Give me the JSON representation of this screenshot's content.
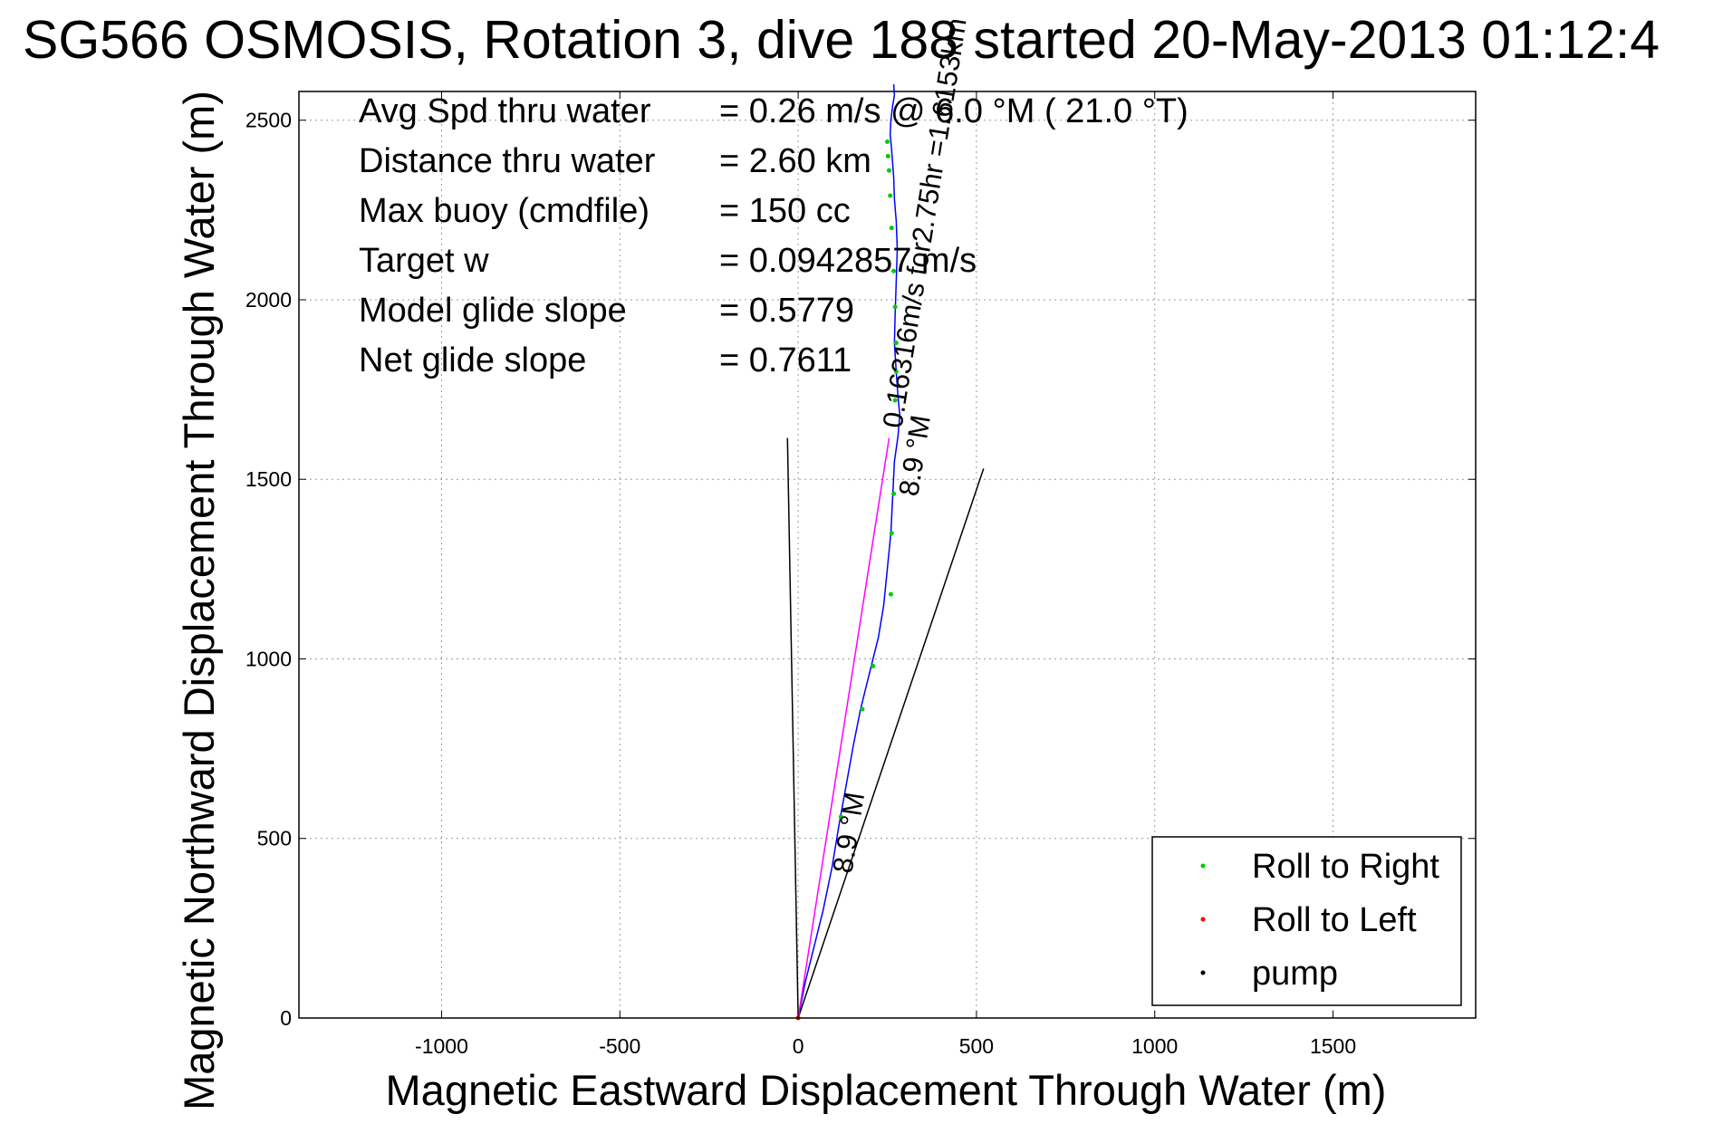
{
  "chart_data": {
    "type": "line",
    "title": "SG566 OSMOSIS, Rotation 3, dive 188 started 20-May-2013 01:12:4",
    "xlabel": "Magnetic Eastward Displacement Through Water (m)",
    "ylabel": "Magnetic Northward Displacement Through Water (m)",
    "xlim": [
      -1400,
      1900
    ],
    "ylim": [
      0,
      2580
    ],
    "xticks": [
      -1000,
      -500,
      0,
      500,
      1000,
      1500
    ],
    "yticks": [
      0,
      500,
      1000,
      1500,
      2000,
      2500
    ],
    "grid": true,
    "legend_position": "bottom-right",
    "stats": [
      {
        "label": "Avg Spd thru water",
        "value": "=  0.26 m/s @   6.0 °M ( 21.0 °T)"
      },
      {
        "label": "Distance thru water",
        "value": "=  2.60 km"
      },
      {
        "label": "Max buoy (cmdfile)",
        "value": "= 150 cc"
      },
      {
        "label": "Target w",
        "value": "= 0.0942857 m/s"
      },
      {
        "label": "Model glide slope",
        "value": "= 0.5779"
      },
      {
        "label": "Net glide slope",
        "value": "= 0.7611"
      }
    ],
    "legend": [
      {
        "name": "Roll to Right",
        "color": "#00cc00"
      },
      {
        "name": "Roll to Left",
        "color": "#ff0000"
      },
      {
        "name": "pump",
        "color": "#000000"
      }
    ],
    "series": [
      {
        "name": "",
        "color": "#0000ff",
        "x": [
          0,
          20,
          45,
          70,
          95,
          115,
          135,
          155,
          175,
          200,
          225,
          240,
          250,
          260,
          265,
          270,
          280,
          285,
          280,
          275,
          270,
          272,
          275,
          278,
          275,
          270,
          268,
          265,
          262,
          258,
          260,
          265,
          270,
          268
        ],
        "y": [
          0,
          100,
          200,
          300,
          420,
          540,
          650,
          760,
          860,
          960,
          1060,
          1150,
          1250,
          1350,
          1450,
          1550,
          1620,
          1680,
          1730,
          1800,
          1880,
          1960,
          2050,
          2140,
          2220,
          2280,
          2340,
          2380,
          2420,
          2460,
          2500,
          2540,
          2570,
          2600
        ]
      },
      {
        "name": "",
        "color": "#ff00ff",
        "x": [
          0,
          255
        ],
        "y": [
          0,
          1615
        ]
      }
    ],
    "green_points": {
      "x": [
        210,
        180,
        260,
        262,
        268,
        272,
        275,
        275,
        272,
        268,
        262,
        258,
        255,
        252,
        250,
        120
      ],
      "y": [
        980,
        860,
        1180,
        1350,
        1460,
        1720,
        1800,
        1880,
        1980,
        2080,
        2200,
        2290,
        2360,
        2400,
        2440,
        560
      ]
    },
    "cone": {
      "left": {
        "x": [
          0,
          -30
        ],
        "y": [
          0,
          1615
        ]
      },
      "right": {
        "x": [
          0,
          520
        ],
        "y": [
          0,
          1530
        ]
      }
    },
    "annotations": [
      {
        "text": "0.16316m/s for2.75hr =1.6153km",
        "x": 290,
        "y": 1640,
        "angle": -81
      },
      {
        "text": "8.9 °M",
        "x": 335,
        "y": 1450,
        "angle": -81
      },
      {
        "text": "8.9 °M",
        "x": 150,
        "y": 400,
        "angle": -81
      }
    ]
  }
}
